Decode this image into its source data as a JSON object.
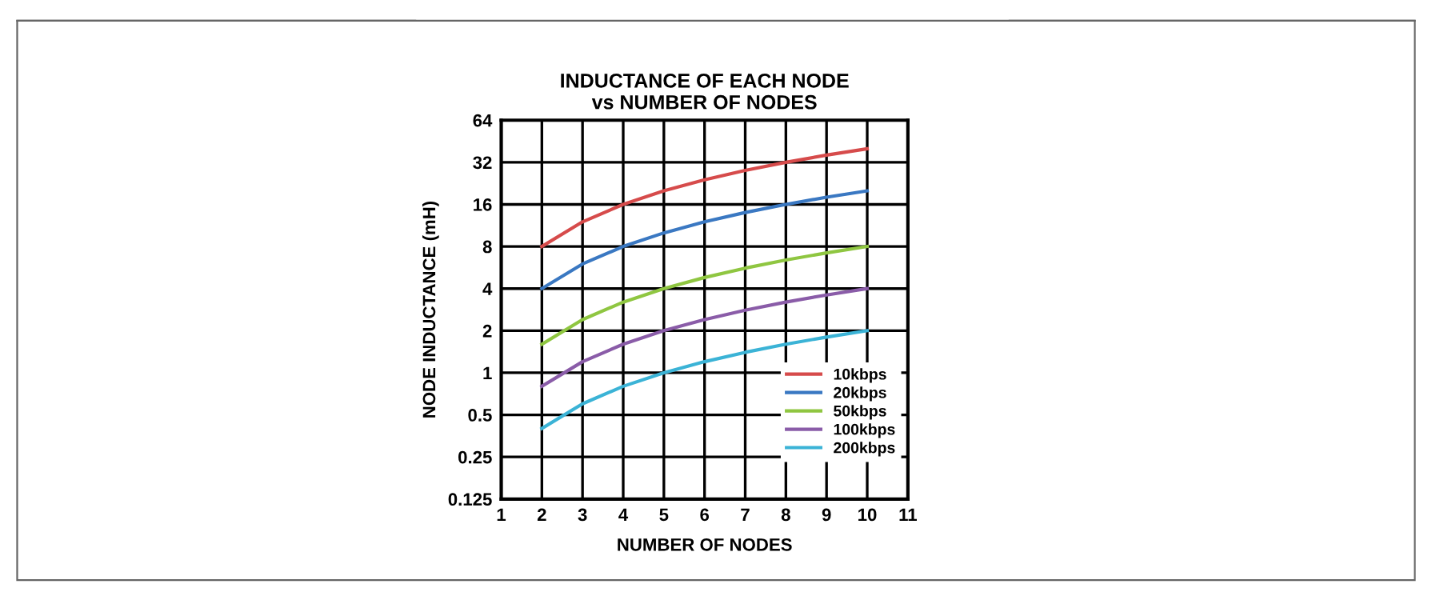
{
  "chart_data": {
    "type": "line",
    "title": "INDUCTANCE OF EACH NODE\nvs NUMBER OF NODES",
    "xlabel": "NUMBER OF NODES",
    "ylabel": "NODE INDUCTANCE (mH)",
    "x": [
      2,
      3,
      4,
      5,
      6,
      7,
      8,
      9,
      10
    ],
    "series": [
      {
        "name": "10kbps",
        "color": "#d64b4b",
        "values": [
          8,
          12,
          16,
          20,
          24,
          28,
          32,
          36,
          40
        ]
      },
      {
        "name": "20kbps",
        "color": "#3a78c2",
        "values": [
          4,
          6,
          8,
          10,
          12,
          14,
          16,
          18,
          20
        ]
      },
      {
        "name": "50kbps",
        "color": "#8fc641",
        "values": [
          1.6,
          2.4,
          3.2,
          4,
          4.8,
          5.6,
          6.4,
          7.2,
          8
        ]
      },
      {
        "name": "100kbps",
        "color": "#8a5ca8",
        "values": [
          0.8,
          1.2,
          1.6,
          2,
          2.4,
          2.8,
          3.2,
          3.6,
          4
        ]
      },
      {
        "name": "200kbps",
        "color": "#3bb3d6",
        "values": [
          0.4,
          0.6,
          0.8,
          1,
          1.2,
          1.4,
          1.6,
          1.8,
          2
        ]
      }
    ],
    "xlim": [
      1,
      11
    ],
    "xticks": [
      1,
      2,
      3,
      4,
      5,
      6,
      7,
      8,
      9,
      10,
      11
    ],
    "ylim": [
      0.125,
      64
    ],
    "yticks": [
      0.125,
      0.25,
      0.5,
      1,
      2,
      4,
      8,
      16,
      32,
      64
    ],
    "log": "y",
    "grid": true,
    "legend": "bottom right",
    "marker": "none",
    "line_style": "solid"
  }
}
